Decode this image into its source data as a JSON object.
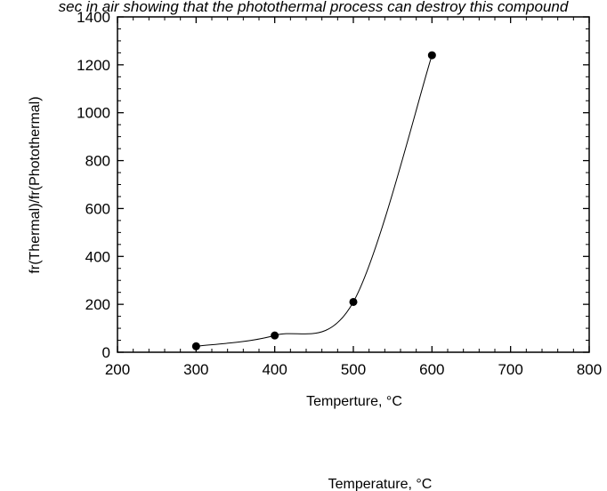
{
  "caption": "sec in air showing that the photothermal process can destroy this compound",
  "bottom_label": "Temperature, °C",
  "chart_data": {
    "type": "scatter",
    "title": "",
    "xlabel": "Temperture, °C",
    "ylabel": "fr(Thermal)/fr(Photothermal)",
    "xlim": [
      200,
      800
    ],
    "ylim": [
      0,
      1400
    ],
    "x_ticks": [
      200,
      300,
      400,
      500,
      600,
      700,
      800
    ],
    "y_ticks": [
      0,
      200,
      400,
      600,
      800,
      1000,
      1200,
      1400
    ],
    "x_tick_labels": [
      "200",
      "300",
      "400",
      "500",
      "600",
      "700",
      "800"
    ],
    "y_tick_labels": [
      "0",
      "200",
      "400",
      "600",
      "800",
      "1000",
      "1200",
      "1400"
    ],
    "grid": false,
    "smooth_curve": true,
    "series": [
      {
        "x": [
          300,
          400,
          500,
          600
        ],
        "y": [
          25,
          70,
          210,
          1240
        ]
      }
    ]
  }
}
